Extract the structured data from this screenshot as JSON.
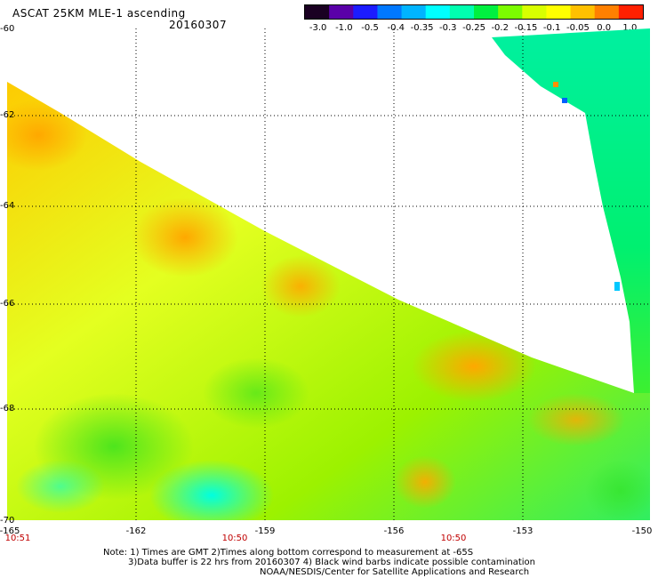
{
  "header": {
    "title": "ASCAT 25KM MLE-1 ascending",
    "date": "20160307"
  },
  "colorbar": {
    "tick_labels": [
      "-3.0",
      "-1.0",
      "-0.5",
      "-0.4",
      "-0.35",
      "-0.3",
      "-0.25",
      "-0.2",
      "-0.15",
      "-0.1",
      "-0.05",
      "0.0",
      "1.0"
    ],
    "colors": [
      "#1a0022",
      "#5a00a8",
      "#1c1cff",
      "#0078ff",
      "#00b4ff",
      "#00ffff",
      "#00ffb0",
      "#00f040",
      "#7cfc00",
      "#d8ff00",
      "#ffff00",
      "#ffc000",
      "#ff8000",
      "#ff2000"
    ]
  },
  "axes": {
    "lat_labels": [
      "-60",
      "-62",
      "-64",
      "-66",
      "-68",
      "-70"
    ],
    "lon_labels": [
      "-165",
      "-162",
      "-159",
      "-156",
      "-153",
      "-150"
    ],
    "times": [
      "10:51",
      "10:50",
      "10:50"
    ]
  },
  "notes": {
    "line1": "Note: 1) Times are GMT 2)Times along bottom correspond to measurement at -65S",
    "line2": "3)Data buffer is 22 hrs from 20160307 4) Black wind barbs indicate possible contamination",
    "line3": "NOAA/NESDIS/Center for Satellite Applications and Research"
  }
}
